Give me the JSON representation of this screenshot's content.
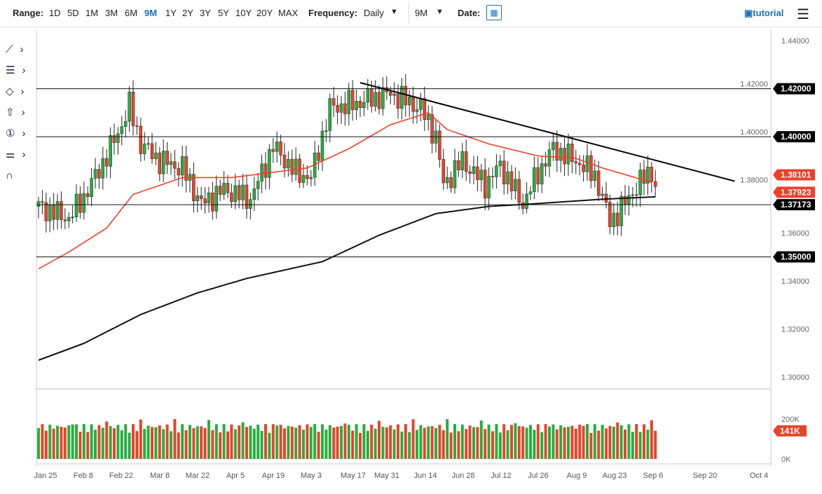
{
  "toolbar": {
    "range_label": "Range:",
    "ranges": [
      "1D",
      "5D",
      "1M",
      "3M",
      "6M",
      "9M",
      "1Y",
      "2Y",
      "3Y",
      "5Y",
      "10Y",
      "20Y",
      "MAX"
    ],
    "active_range": "9M",
    "frequency_label": "Frequency:",
    "frequency": "Daily",
    "period": "9M",
    "date_label": "Date:",
    "tutorial": "tutorial"
  },
  "colors": {
    "up": "#27ae3f",
    "down": "#e8442b",
    "ma50": "#f0402a",
    "ma200": "#111111",
    "accent": "#1a6fb5"
  },
  "chart_data": {
    "type": "candlestick",
    "y_ticks": [
      "1.44000",
      "1.42000",
      "1.40000",
      "1.38000",
      "1.36000",
      "1.34000",
      "1.32000",
      "1.30000"
    ],
    "ylim": [
      1.3,
      1.44
    ],
    "x_ticks": [
      "Jan 25",
      "Feb 8",
      "Feb 22",
      "Mar 8",
      "Mar 22",
      "Apr 5",
      "Apr 19",
      "May 3",
      "May 17",
      "May 31",
      "Jun 14",
      "Jun 28",
      "Jul 12",
      "Jul 26",
      "Aug 9",
      "Aug 23",
      "Sep 6",
      "Sep 20",
      "Oct 4"
    ],
    "close_waypoints": [
      [
        0,
        1.371
      ],
      [
        8,
        1.366
      ],
      [
        12,
        1.375
      ],
      [
        18,
        1.392
      ],
      [
        22,
        1.405
      ],
      [
        24,
        1.413
      ],
      [
        27,
        1.397
      ],
      [
        32,
        1.39
      ],
      [
        38,
        1.387
      ],
      [
        43,
        1.372
      ],
      [
        49,
        1.378
      ],
      [
        56,
        1.374
      ],
      [
        62,
        1.396
      ],
      [
        68,
        1.385
      ],
      [
        72,
        1.383
      ],
      [
        77,
        1.412
      ],
      [
        84,
        1.414
      ],
      [
        93,
        1.418
      ],
      [
        101,
        1.412
      ],
      [
        105,
        1.4
      ],
      [
        107,
        1.38
      ],
      [
        112,
        1.39
      ],
      [
        118,
        1.38
      ],
      [
        122,
        1.388
      ],
      [
        128,
        1.372
      ],
      [
        132,
        1.385
      ],
      [
        136,
        1.395
      ],
      [
        142,
        1.39
      ],
      [
        147,
        1.384
      ],
      [
        151,
        1.365
      ],
      [
        153,
        1.368
      ],
      [
        156,
        1.375
      ],
      [
        160,
        1.383
      ],
      [
        162,
        1.386
      ],
      [
        163,
        1.379
      ]
    ],
    "ma50_waypoints": [
      [
        0,
        1.345
      ],
      [
        8,
        1.352
      ],
      [
        18,
        1.362
      ],
      [
        25,
        1.376
      ],
      [
        38,
        1.383
      ],
      [
        51,
        1.383
      ],
      [
        71,
        1.387
      ],
      [
        82,
        1.395
      ],
      [
        93,
        1.405
      ],
      [
        103,
        1.41
      ],
      [
        108,
        1.403
      ],
      [
        119,
        1.397
      ],
      [
        132,
        1.392
      ],
      [
        142,
        1.391
      ],
      [
        149,
        1.387
      ],
      [
        162,
        1.381
      ]
    ],
    "ma200_waypoints": [
      [
        0,
        1.307
      ],
      [
        12,
        1.314
      ],
      [
        27,
        1.326
      ],
      [
        42,
        1.335
      ],
      [
        55,
        1.341
      ],
      [
        75,
        1.348
      ],
      [
        90,
        1.359
      ],
      [
        105,
        1.368
      ],
      [
        119,
        1.371
      ],
      [
        130,
        1.372
      ],
      [
        149,
        1.374
      ],
      [
        163,
        1.375
      ]
    ],
    "trendline": [
      [
        85,
        1.4225
      ],
      [
        184,
        1.3815
      ]
    ],
    "horizontal_levels": [
      {
        "value": 1.42,
        "label": "1.42000"
      },
      {
        "value": 1.4,
        "label": "1.40000"
      },
      {
        "value": 1.37173,
        "label": "1.37173"
      },
      {
        "value": 1.35,
        "label": "1.35000"
      }
    ],
    "price_labels": [
      {
        "label": "1.38101",
        "color": "#f0402a"
      },
      {
        "label": "1.37923",
        "color": "#f0402a"
      }
    ],
    "volume": {
      "ticks": [
        "200K",
        "0K"
      ],
      "ylim": [
        0,
        200
      ],
      "last_label": "141K"
    }
  }
}
